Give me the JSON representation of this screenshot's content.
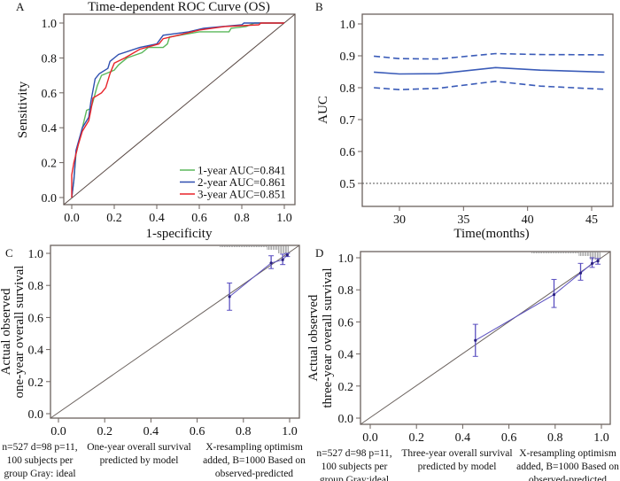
{
  "chart_data": [
    {
      "panel": "A",
      "type": "line",
      "title": "Time-dependent ROC Curve (OS)",
      "xlabel": "1-specificity",
      "ylabel": "Sensitivity",
      "xlim": [
        0,
        1
      ],
      "ylim": [
        0,
        1
      ],
      "xticks": [
        "0.0",
        "0.2",
        "0.4",
        "0.6",
        "0.8",
        "1.0"
      ],
      "yticks": [
        "0.0",
        "0.2",
        "0.4",
        "0.6",
        "0.8",
        "1.0"
      ],
      "legend_position": "bottom-right",
      "diagonal_reference": true,
      "series": [
        {
          "name": "1-year AUC=0.841",
          "color": "#5cb85c",
          "x": [
            0,
            0.01,
            0.02,
            0.04,
            0.07,
            0.09,
            0.1,
            0.12,
            0.14,
            0.2,
            0.22,
            0.26,
            0.33,
            0.36,
            0.43,
            0.45,
            0.46,
            0.6,
            0.74,
            0.75,
            0.82,
            0.86,
            1
          ],
          "y": [
            0,
            0.1,
            0.25,
            0.35,
            0.5,
            0.51,
            0.55,
            0.64,
            0.7,
            0.73,
            0.76,
            0.8,
            0.83,
            0.86,
            0.86,
            0.88,
            0.92,
            0.95,
            0.95,
            0.97,
            0.98,
            1,
            1
          ]
        },
        {
          "name": "2-year AUC=0.861",
          "color": "#2f4fb0",
          "x": [
            0,
            0.01,
            0.02,
            0.05,
            0.08,
            0.09,
            0.11,
            0.13,
            0.17,
            0.18,
            0.22,
            0.32,
            0.4,
            0.43,
            0.55,
            0.62,
            0.8,
            0.81,
            1
          ],
          "y": [
            0,
            0.1,
            0.27,
            0.4,
            0.46,
            0.55,
            0.68,
            0.71,
            0.74,
            0.78,
            0.82,
            0.86,
            0.88,
            0.93,
            0.95,
            0.97,
            0.99,
            1,
            1
          ]
        },
        {
          "name": "3-year AUC=0.851",
          "color": "#e8242a",
          "x": [
            0,
            0,
            0.01,
            0.03,
            0.05,
            0.08,
            0.09,
            0.1,
            0.14,
            0.16,
            0.18,
            0.2,
            0.25,
            0.32,
            0.41,
            0.43,
            0.5,
            0.6,
            0.72,
            0.88,
            0.89,
            1
          ],
          "y": [
            0,
            0.13,
            0.2,
            0.3,
            0.38,
            0.44,
            0.5,
            0.57,
            0.6,
            0.63,
            0.71,
            0.77,
            0.8,
            0.85,
            0.88,
            0.91,
            0.93,
            0.96,
            0.98,
            0.99,
            1,
            1
          ]
        }
      ]
    },
    {
      "panel": "B",
      "type": "line",
      "xlabel": "Time(months)",
      "ylabel": "AUC",
      "xlim": [
        27.5,
        46.3
      ],
      "ylim": [
        0.45,
        1.02
      ],
      "xticks": [
        "30",
        "35",
        "40",
        "45"
      ],
      "yticks": [
        "0.5",
        "0.6",
        "0.7",
        "0.8",
        "0.9",
        "1.0"
      ],
      "reference_line": 0.5,
      "color": "#3a5bb8",
      "x": [
        28,
        30,
        33,
        37.5,
        41,
        46
      ],
      "auc": [
        0.849,
        0.843,
        0.844,
        0.863,
        0.855,
        0.849
      ],
      "upper": [
        0.899,
        0.891,
        0.89,
        0.907,
        0.904,
        0.903
      ],
      "lower": [
        0.8,
        0.794,
        0.798,
        0.82,
        0.805,
        0.795
      ]
    },
    {
      "panel": "C",
      "type": "scatter",
      "ylabel": [
        "Actual observed",
        "one-year overall survival"
      ],
      "xlim": [
        0,
        1
      ],
      "ylim": [
        0,
        1
      ],
      "xticks": [
        "0.0",
        "0.2",
        "0.4",
        "0.6",
        "0.8",
        "1.0"
      ],
      "yticks": [
        "0.0",
        "0.2",
        "0.4",
        "0.6",
        "0.8",
        "1.0"
      ],
      "color": "#5a4fc0",
      "notes": [
        [
          "n=527 d=98 p=11,",
          "100 subjects per",
          "group Gray: ideal"
        ],
        [
          "One-year overall survival",
          "predicted by model"
        ],
        [
          "X-resampling optimism",
          "added, B=1000 Based on",
          "observed-predicted"
        ]
      ],
      "points": [
        {
          "x": 0.74,
          "y": 0.73,
          "lo": 0.645,
          "hi": 0.815
        },
        {
          "x": 0.92,
          "y": 0.94,
          "lo": 0.905,
          "hi": 0.985
        },
        {
          "x": 0.97,
          "y": 0.96,
          "lo": 0.93,
          "hi": 0.995
        },
        {
          "x": 0.99,
          "y": 0.99,
          "lo": 0.98,
          "hi": 1.0
        }
      ]
    },
    {
      "panel": "D",
      "type": "scatter",
      "ylabel": [
        "Actual observed",
        "three-year overall survival"
      ],
      "xlim": [
        0,
        1
      ],
      "ylim": [
        0,
        1
      ],
      "xticks": [
        "0.0",
        "0.2",
        "0.4",
        "0.6",
        "0.8",
        "1.0"
      ],
      "yticks": [
        "0.0",
        "0.2",
        "0.4",
        "0.6",
        "0.8",
        "1.0"
      ],
      "color": "#5a4fc0",
      "notes": [
        [
          "n=527 d=98 p=11,",
          "100 subjects per",
          "group Gray:ideal"
        ],
        [
          "Three-year overall survival",
          "predicted by model"
        ],
        [
          "X-resampling optimism",
          "added, B=1000 Based on",
          "observed-predicted"
        ]
      ],
      "points": [
        {
          "x": 0.455,
          "y": 0.485,
          "lo": 0.385,
          "hi": 0.585
        },
        {
          "x": 0.795,
          "y": 0.77,
          "lo": 0.69,
          "hi": 0.865
        },
        {
          "x": 0.91,
          "y": 0.905,
          "lo": 0.86,
          "hi": 0.965
        },
        {
          "x": 0.96,
          "y": 0.965,
          "lo": 0.94,
          "hi": 1.0
        },
        {
          "x": 0.985,
          "y": 0.98,
          "lo": 0.96,
          "hi": 0.995
        }
      ]
    }
  ]
}
